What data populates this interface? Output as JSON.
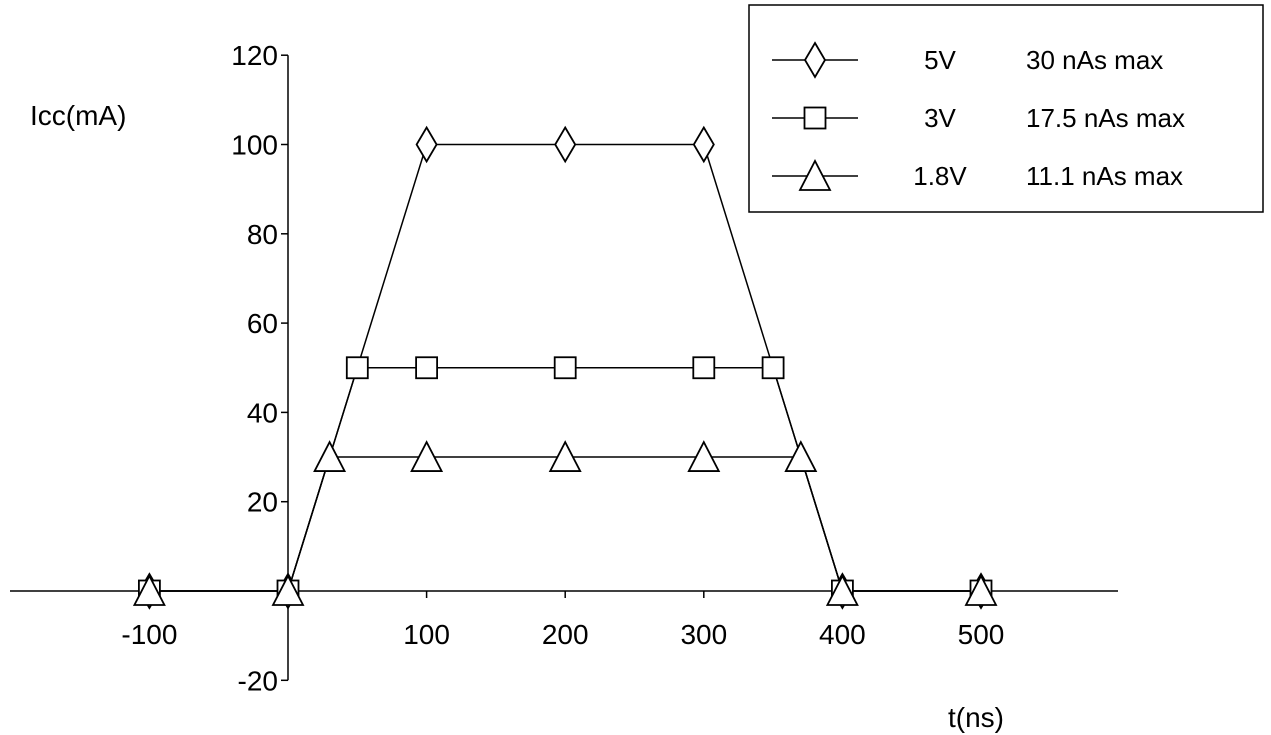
{
  "chart_data": {
    "type": "line",
    "title": "",
    "xlabel": "t(ns)",
    "ylabel": "Icc(mA)",
    "xlim": [
      -100,
      500
    ],
    "ylim": [
      -20,
      120
    ],
    "x_ticks": [
      -100,
      100,
      200,
      300,
      400,
      500
    ],
    "y_ticks": [
      -20,
      20,
      40,
      60,
      80,
      100,
      120
    ],
    "grid": false,
    "legend_position": "top-right",
    "colors": {
      "line": "#000000",
      "marker_fill": "#ffffff"
    },
    "series": [
      {
        "name": "5V",
        "note": "30 nAs max",
        "marker": "diamond",
        "points": [
          [
            -100,
            0
          ],
          [
            0,
            0
          ],
          [
            100,
            100
          ],
          [
            200,
            100
          ],
          [
            300,
            100
          ],
          [
            400,
            0
          ],
          [
            500,
            0
          ]
        ]
      },
      {
        "name": "3V",
        "note": "17.5 nAs max",
        "marker": "square",
        "points": [
          [
            -100,
            0
          ],
          [
            0,
            0
          ],
          [
            50,
            50
          ],
          [
            100,
            50
          ],
          [
            200,
            50
          ],
          [
            300,
            50
          ],
          [
            350,
            50
          ],
          [
            400,
            0
          ],
          [
            500,
            0
          ]
        ]
      },
      {
        "name": "1.8V",
        "note": "11.1 nAs max",
        "marker": "triangle",
        "points": [
          [
            -100,
            0
          ],
          [
            0,
            0
          ],
          [
            30,
            30
          ],
          [
            100,
            30
          ],
          [
            200,
            30
          ],
          [
            300,
            30
          ],
          [
            370,
            30
          ],
          [
            400,
            0
          ],
          [
            500,
            0
          ]
        ]
      }
    ]
  }
}
